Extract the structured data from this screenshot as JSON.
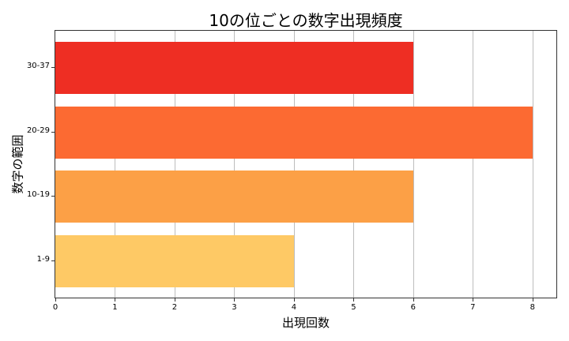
{
  "chart_data": {
    "type": "bar",
    "orientation": "horizontal",
    "title": "10の位ごとの数字出現頻度",
    "xlabel": "出現回数",
    "ylabel": "数字の範囲",
    "categories": [
      "1-9",
      "10-19",
      "20-29",
      "30-37"
    ],
    "values": [
      4,
      6,
      8,
      6
    ],
    "colors": [
      "#fec965",
      "#fca046",
      "#fc6a32",
      "#ee2e23"
    ],
    "xlim": [
      0,
      8.4
    ],
    "xticks": [
      "0",
      "1",
      "2",
      "3",
      "4",
      "5",
      "6",
      "7",
      "8"
    ],
    "grid": {
      "x": true,
      "y": false
    },
    "legend": null
  }
}
